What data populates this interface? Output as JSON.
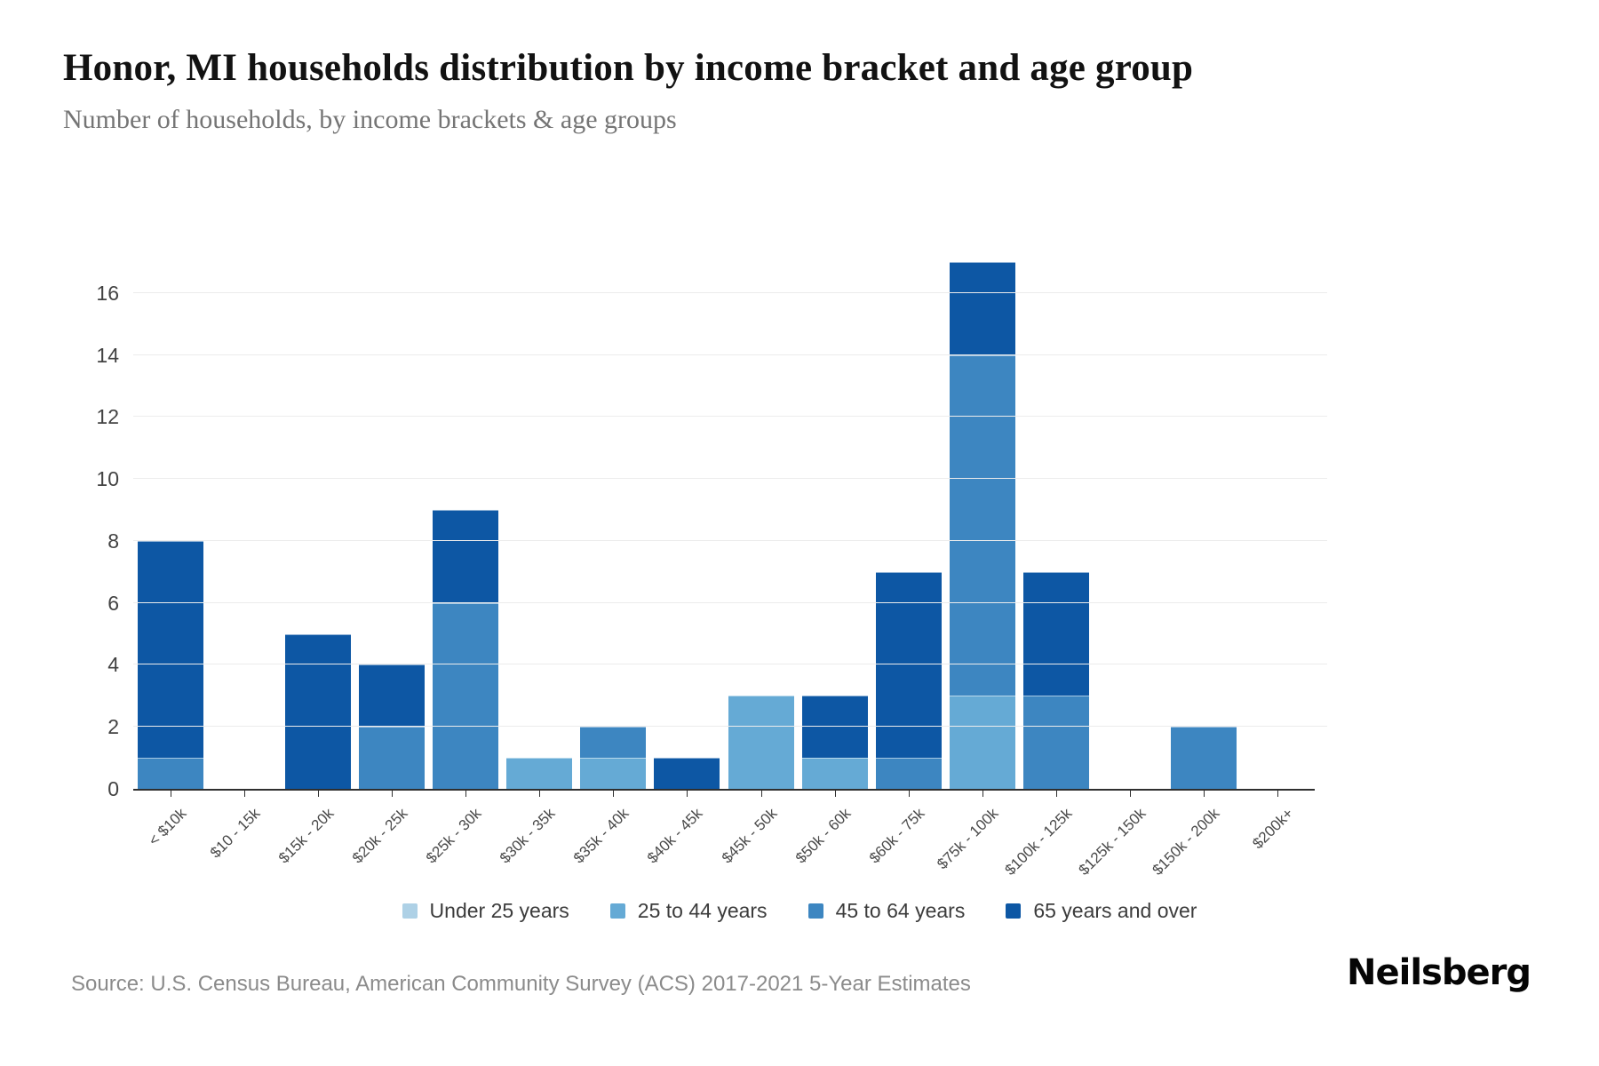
{
  "header": {
    "title": "Honor, MI households distribution by income bracket and age group",
    "subtitle": "Number of households, by income brackets & age groups"
  },
  "footer": {
    "source": "Source: U.S. Census Bureau, American Community Survey (ACS) 2017-2021 5-Year Estimates",
    "brand": "Neilsberg"
  },
  "chart_data": {
    "type": "bar",
    "stacked": true,
    "categories": [
      "< $10k",
      "$10 - 15k",
      "$15k - 20k",
      "$20k - 25k",
      "$25k - 30k",
      "$30k - 35k",
      "$35k - 40k",
      "$40k - 45k",
      "$45k - 50k",
      "$50k - 60k",
      "$60k - 75k",
      "$75k - 100k",
      "$100k - 125k",
      "$125k - 150k",
      "$150k - 200k",
      "$200k+"
    ],
    "series": [
      {
        "name": "Under 25 years",
        "color": "#aed1e6",
        "values": [
          0,
          0,
          0,
          0,
          0,
          0,
          0,
          0,
          0,
          0,
          0,
          0,
          0,
          0,
          0,
          0
        ]
      },
      {
        "name": "25 to 44 years",
        "color": "#65aad5",
        "values": [
          0,
          0,
          0,
          0,
          0,
          1,
          1,
          0,
          3,
          1,
          0,
          3,
          0,
          0,
          0,
          0
        ]
      },
      {
        "name": "45 to 64 years",
        "color": "#3d86c1",
        "values": [
          1,
          0,
          0,
          2,
          6,
          0,
          1,
          0,
          0,
          0,
          1,
          11,
          3,
          0,
          2,
          0
        ]
      },
      {
        "name": "65 years and over",
        "color": "#0d57a4",
        "values": [
          7,
          0,
          5,
          2,
          3,
          0,
          0,
          1,
          0,
          2,
          6,
          3,
          4,
          0,
          0,
          0
        ]
      }
    ],
    "totals": [
      8,
      0,
      5,
      4,
      9,
      1,
      2,
      1,
      3,
      3,
      7,
      17,
      7,
      0,
      2,
      0
    ],
    "title": "Honor, MI households distribution by income bracket and age group",
    "xlabel": "",
    "ylabel": "",
    "ylim": [
      0,
      18
    ],
    "yticks": [
      0,
      2,
      4,
      6,
      8,
      10,
      12,
      14,
      16
    ],
    "grid": true,
    "legend_position": "bottom"
  }
}
